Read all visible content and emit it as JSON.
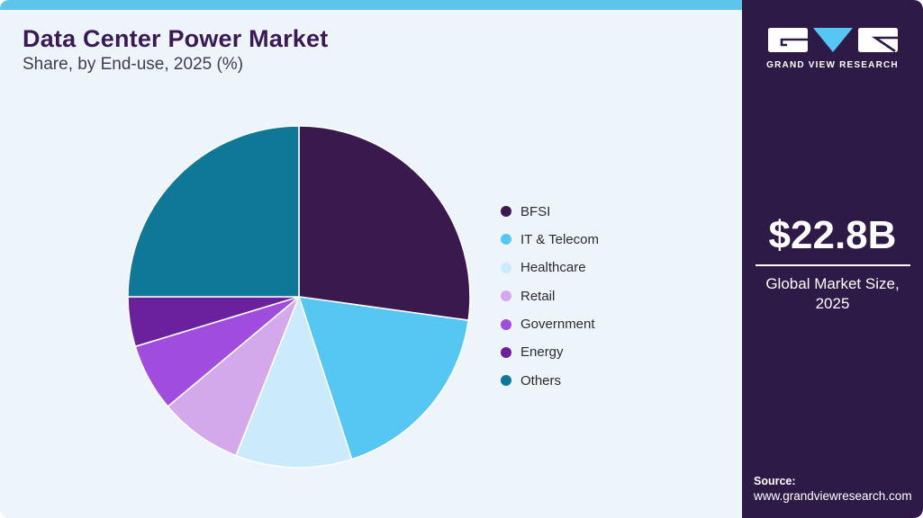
{
  "header": {
    "title": "Data Center Power Market",
    "subtitle": "Share, by End-use, 2025 (%)"
  },
  "chart_data": {
    "type": "pie",
    "title": "Data Center Power Market Share, by End-use, 2025 (%)",
    "categories": [
      "BFSI",
      "IT & Telecom",
      "Healthcare",
      "Retail",
      "Government",
      "Energy",
      "Others"
    ],
    "values": [
      27.2,
      17.8,
      11.0,
      7.9,
      6.4,
      4.7,
      25.0
    ],
    "colors": [
      "#3A1A4E",
      "#56C7F2",
      "#CBEAFB",
      "#D4A9EC",
      "#A04CDE",
      "#6B219B",
      "#0F7899"
    ],
    "units": "%",
    "start_angle_deg": 0,
    "direction": "clockwise",
    "legend_position": "right",
    "slice_gap_color": "#FDFEFF",
    "note": "values estimated from slice angles; no numeric labels shown"
  },
  "sidebar": {
    "brand": "GRAND VIEW RESEARCH",
    "market_size_value": "$22.8B",
    "market_size_label_line1": "Global Market Size,",
    "market_size_label_line2": "2025",
    "source_label": "Source:",
    "source_url": "www.grandviewresearch.com"
  },
  "theme": {
    "accent_bar": "#5FC4EC",
    "panel_bg": "#EDF4FA",
    "sidebar_bg": "#2E1A47",
    "title_color": "#3A1A54",
    "logo_triangle": "#56C7F2"
  }
}
